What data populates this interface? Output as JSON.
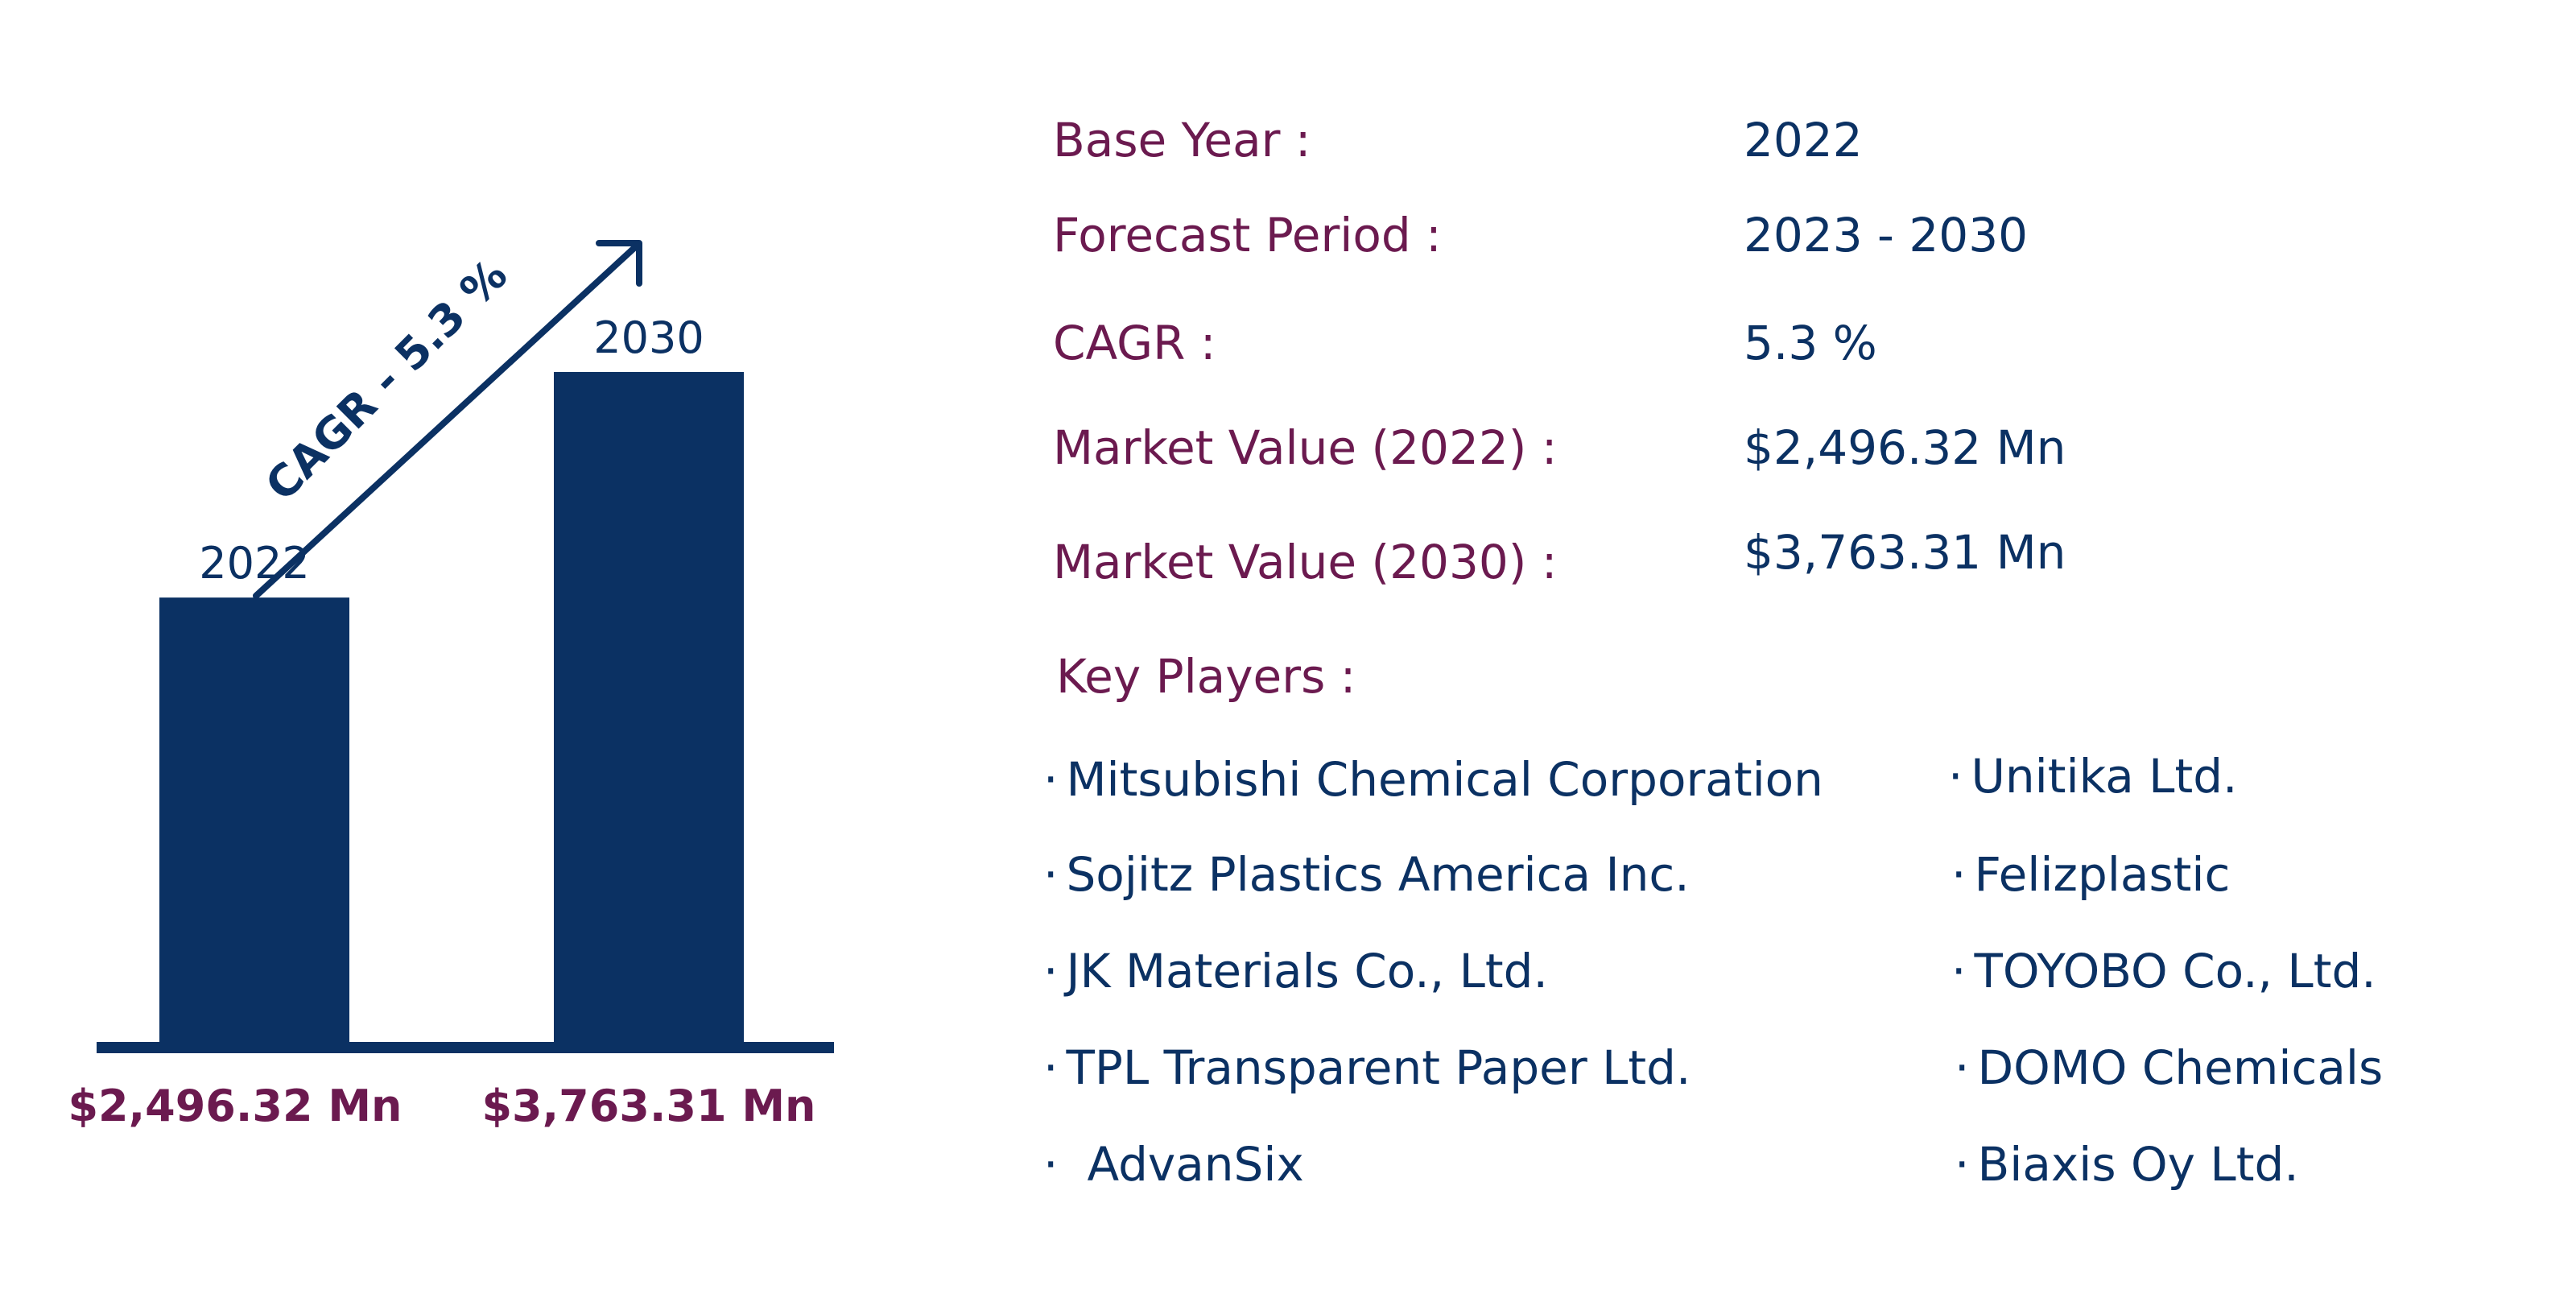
{
  "chart_data": {
    "type": "bar",
    "categories": [
      "2022",
      "2030"
    ],
    "values": [
      2496.32,
      3763.31
    ],
    "value_labels": [
      "$2,496.32 Mn",
      "$3,763.31 Mn"
    ],
    "annotation": "CAGR - 5.3 %",
    "xlabel": "",
    "ylabel": "",
    "grid": false,
    "colors": {
      "bar": "#0b3163",
      "value_label": "#6b1a4f",
      "annotation": "#0b3163"
    }
  },
  "info": {
    "rows": [
      {
        "label": "Base Year :",
        "value": "2022"
      },
      {
        "label": "Forecast Period :",
        "value": "2023 - 2030"
      },
      {
        "label": "CAGR :",
        "value": "5.3 %"
      },
      {
        "label": "Market Value (2022) :",
        "value": "$2,496.32 Mn"
      },
      {
        "label": "Market Value (2030) :",
        "value": "$3,763.31 Mn"
      }
    ],
    "key_players_label": "Key Players :",
    "bullet": "·",
    "players_left": [
      "Mitsubishi Chemical Corporation",
      "Sojitz Plastics America Inc.",
      "JK Materials Co., Ltd.",
      "TPL Transparent Paper Ltd.",
      "AdvanSix"
    ],
    "players_right": [
      "Unitika Ltd.",
      "Felizplastic",
      "TOYOBO Co., Ltd.",
      "DOMO Chemicals",
      "Biaxis Oy Ltd."
    ],
    "colors": {
      "label": "#6b1a4f",
      "value": "#0b3163"
    }
  }
}
